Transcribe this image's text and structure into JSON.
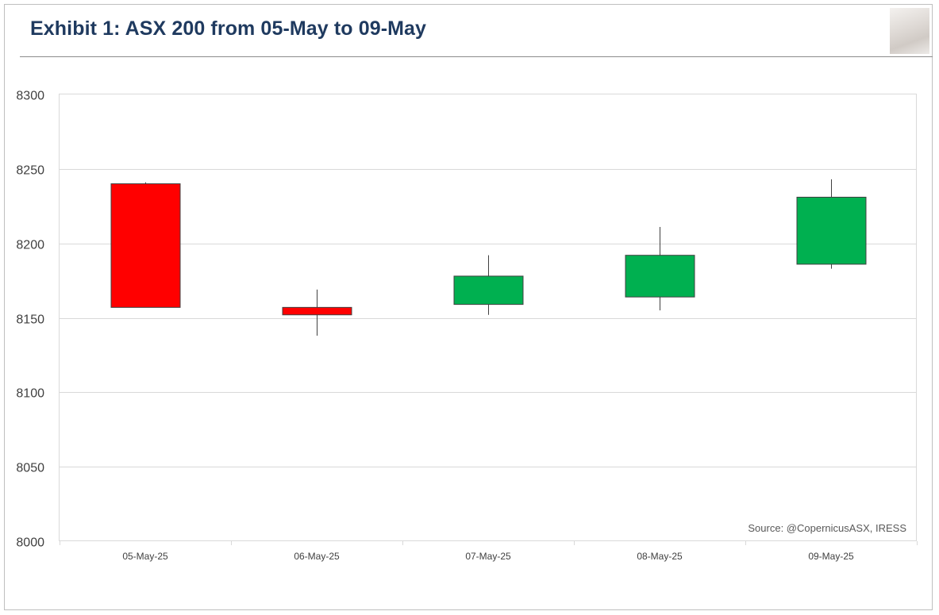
{
  "title": "Exhibit 1: ASX 200 from 05-May to 09-May",
  "source": "Source: @CopernicusASX, IRESS",
  "logo_icon": "statue-portrait-logo",
  "colors": {
    "up": "#00b050",
    "down": "#ff0000",
    "title": "#1f3a5f",
    "grid": "#d9d9d9"
  },
  "chart_data": {
    "type": "candlestick",
    "categories": [
      "05-May-25",
      "06-May-25",
      "07-May-25",
      "08-May-25",
      "09-May-25"
    ],
    "ylim": [
      8000,
      8300
    ],
    "yticks": [
      8000,
      8050,
      8100,
      8150,
      8200,
      8250,
      8300
    ],
    "grid": true,
    "candles": [
      {
        "date": "05-May-25",
        "open": 8240,
        "high": 8241,
        "low": 8157,
        "close": 8157
      },
      {
        "date": "06-May-25",
        "open": 8157,
        "high": 8169,
        "low": 8138,
        "close": 8152
      },
      {
        "date": "07-May-25",
        "open": 8159,
        "high": 8192,
        "low": 8152,
        "close": 8178
      },
      {
        "date": "08-May-25",
        "open": 8164,
        "high": 8211,
        "low": 8155,
        "close": 8192
      },
      {
        "date": "09-May-25",
        "open": 8186,
        "high": 8243,
        "low": 8183,
        "close": 8231
      }
    ]
  }
}
